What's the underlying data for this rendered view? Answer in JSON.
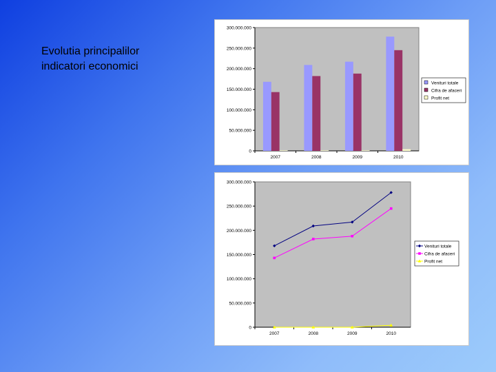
{
  "slide": {
    "title_line1": "Evolutia principalilor",
    "title_line2": "indicatori economici",
    "background_colors": [
      "#0f3fe0",
      "#9ccbfb"
    ]
  },
  "chart_data": [
    {
      "type": "bar",
      "categories": [
        "2007",
        "2008",
        "2009",
        "2010"
      ],
      "series": [
        {
          "name": "Venituri totale",
          "values": [
            168000000,
            209000000,
            217000000,
            278000000
          ],
          "color": "#9999ff"
        },
        {
          "name": "Cifra de afaceri",
          "values": [
            143000000,
            182000000,
            188000000,
            245000000
          ],
          "color": "#993366"
        },
        {
          "name": "Profit net",
          "values": [
            0,
            0,
            0,
            4000000
          ],
          "color": "#ffffcc"
        }
      ],
      "ylim": [
        0,
        300000000
      ],
      "yticks": [
        0,
        50000000,
        100000000,
        150000000,
        200000000,
        250000000,
        300000000
      ],
      "ytick_labels": [
        "0",
        "50.000.000",
        "100.000.000",
        "150.000.000",
        "200.000.000",
        "250.000.000",
        "300.000.000"
      ],
      "plot_background": "#c0c0c0",
      "legend_position": "right",
      "grid": false
    },
    {
      "type": "line",
      "categories": [
        "2007",
        "2008",
        "2009",
        "2010"
      ],
      "series": [
        {
          "name": "Venituri totale",
          "values": [
            168000000,
            209000000,
            217000000,
            278000000
          ],
          "color": "#000080",
          "marker": "diamond"
        },
        {
          "name": "Cifra de afaceri",
          "values": [
            143000000,
            182000000,
            188000000,
            245000000
          ],
          "color": "#ff00ff",
          "marker": "square"
        },
        {
          "name": "Profit net",
          "values": [
            0,
            0,
            0,
            4000000
          ],
          "color": "#ffff00",
          "marker": "triangle"
        }
      ],
      "ylim": [
        0,
        300000000
      ],
      "yticks": [
        0,
        50000000,
        100000000,
        150000000,
        200000000,
        250000000,
        300000000
      ],
      "ytick_labels": [
        "0",
        "50.000.000",
        "100.000.000",
        "150.000.000",
        "200.000.000",
        "250.000.000",
        "300.000.000"
      ],
      "plot_background": "#c0c0c0",
      "legend_position": "right",
      "grid": false
    }
  ]
}
